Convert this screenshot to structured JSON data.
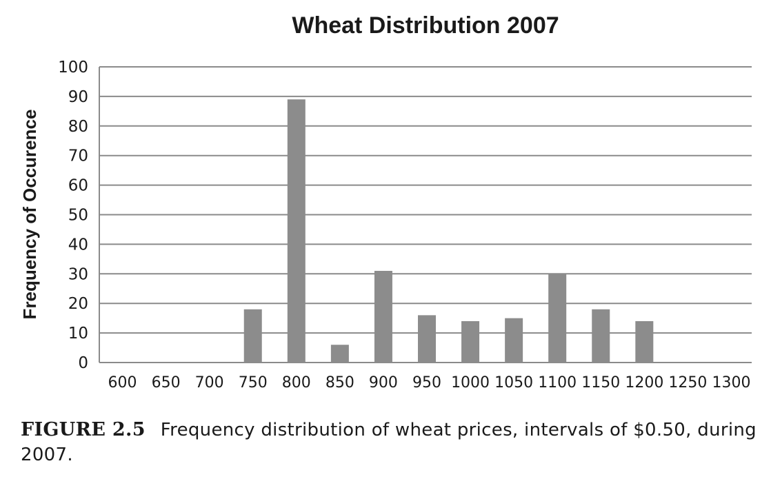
{
  "chart_data": {
    "type": "bar",
    "title": "Wheat Distribution 2007",
    "xlabel": "",
    "ylabel": "Frequency of Occurence",
    "ylim": [
      0,
      100
    ],
    "yticks": [
      "0",
      "10",
      "20",
      "30",
      "40",
      "50",
      "60",
      "70",
      "80",
      "90",
      "100"
    ],
    "categories": [
      "600",
      "650",
      "700",
      "750",
      "800",
      "850",
      "900",
      "950",
      "1000",
      "1050",
      "1100",
      "1150",
      "1200",
      "1250",
      "1300"
    ],
    "values": [
      0,
      0,
      0,
      18,
      89,
      6,
      31,
      16,
      14,
      15,
      30,
      18,
      14,
      0,
      0
    ],
    "grid": true,
    "bar_color": "#8c8c8c"
  },
  "caption": {
    "figure_label": "FIGURE 2.5",
    "text": "Frequency distribution of wheat prices, intervals of $0.50, during 2007."
  }
}
